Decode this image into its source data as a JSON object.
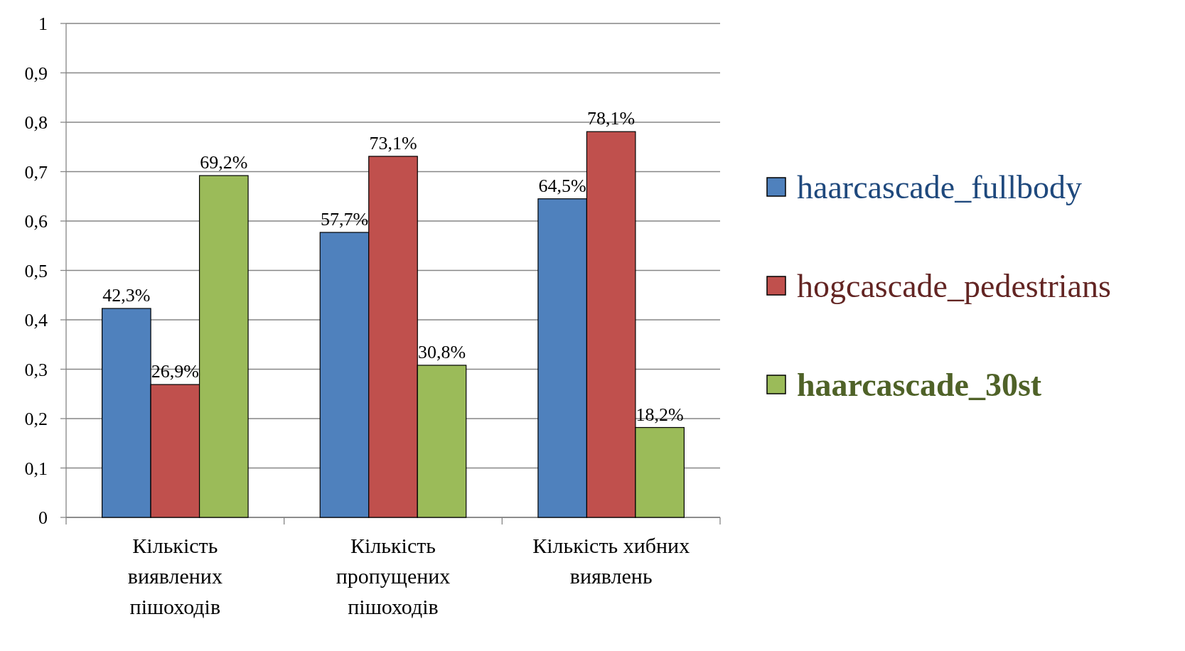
{
  "chart_data": {
    "type": "bar",
    "categories": [
      "Кількість виявлених пішоходів",
      "Кількість пропущених пішоходів",
      "Кількість хибних виявлень"
    ],
    "series": [
      {
        "name": "haarcascade_fullbody",
        "color": "#4f81bd",
        "values": [
          0.423,
          0.577,
          0.645
        ],
        "value_labels": [
          "42,3%",
          "57,7%",
          "64,5%"
        ]
      },
      {
        "name": "hogcascade_pedestrians",
        "color": "#c0504d",
        "values": [
          0.269,
          0.731,
          0.781
        ],
        "value_labels": [
          "26,9%",
          "73,1%",
          "78,1%"
        ]
      },
      {
        "name": "haarcascade_30st",
        "color": "#9bbb59",
        "values": [
          0.692,
          0.308,
          0.182
        ],
        "value_labels": [
          "69,2%",
          "30,8%",
          "18,2%"
        ]
      }
    ],
    "ylim": [
      0,
      1
    ],
    "yticks": [
      0,
      {
        "value": 0.1,
        "label": "0,1"
      },
      {
        "value": 0.2,
        "label": "0,2"
      },
      {
        "value": 0.3,
        "label": "0,3"
      },
      {
        "value": 0.4,
        "label": "0,4"
      },
      {
        "value": 0.5,
        "label": "0,5"
      },
      {
        "value": 0.6,
        "label": "0,6"
      },
      {
        "value": 0.7,
        "label": "0,7"
      },
      {
        "value": 0.8,
        "label": "0,8"
      },
      {
        "value": 0.9,
        "label": "0,9"
      },
      1
    ],
    "grid": "y",
    "legend": "right"
  }
}
